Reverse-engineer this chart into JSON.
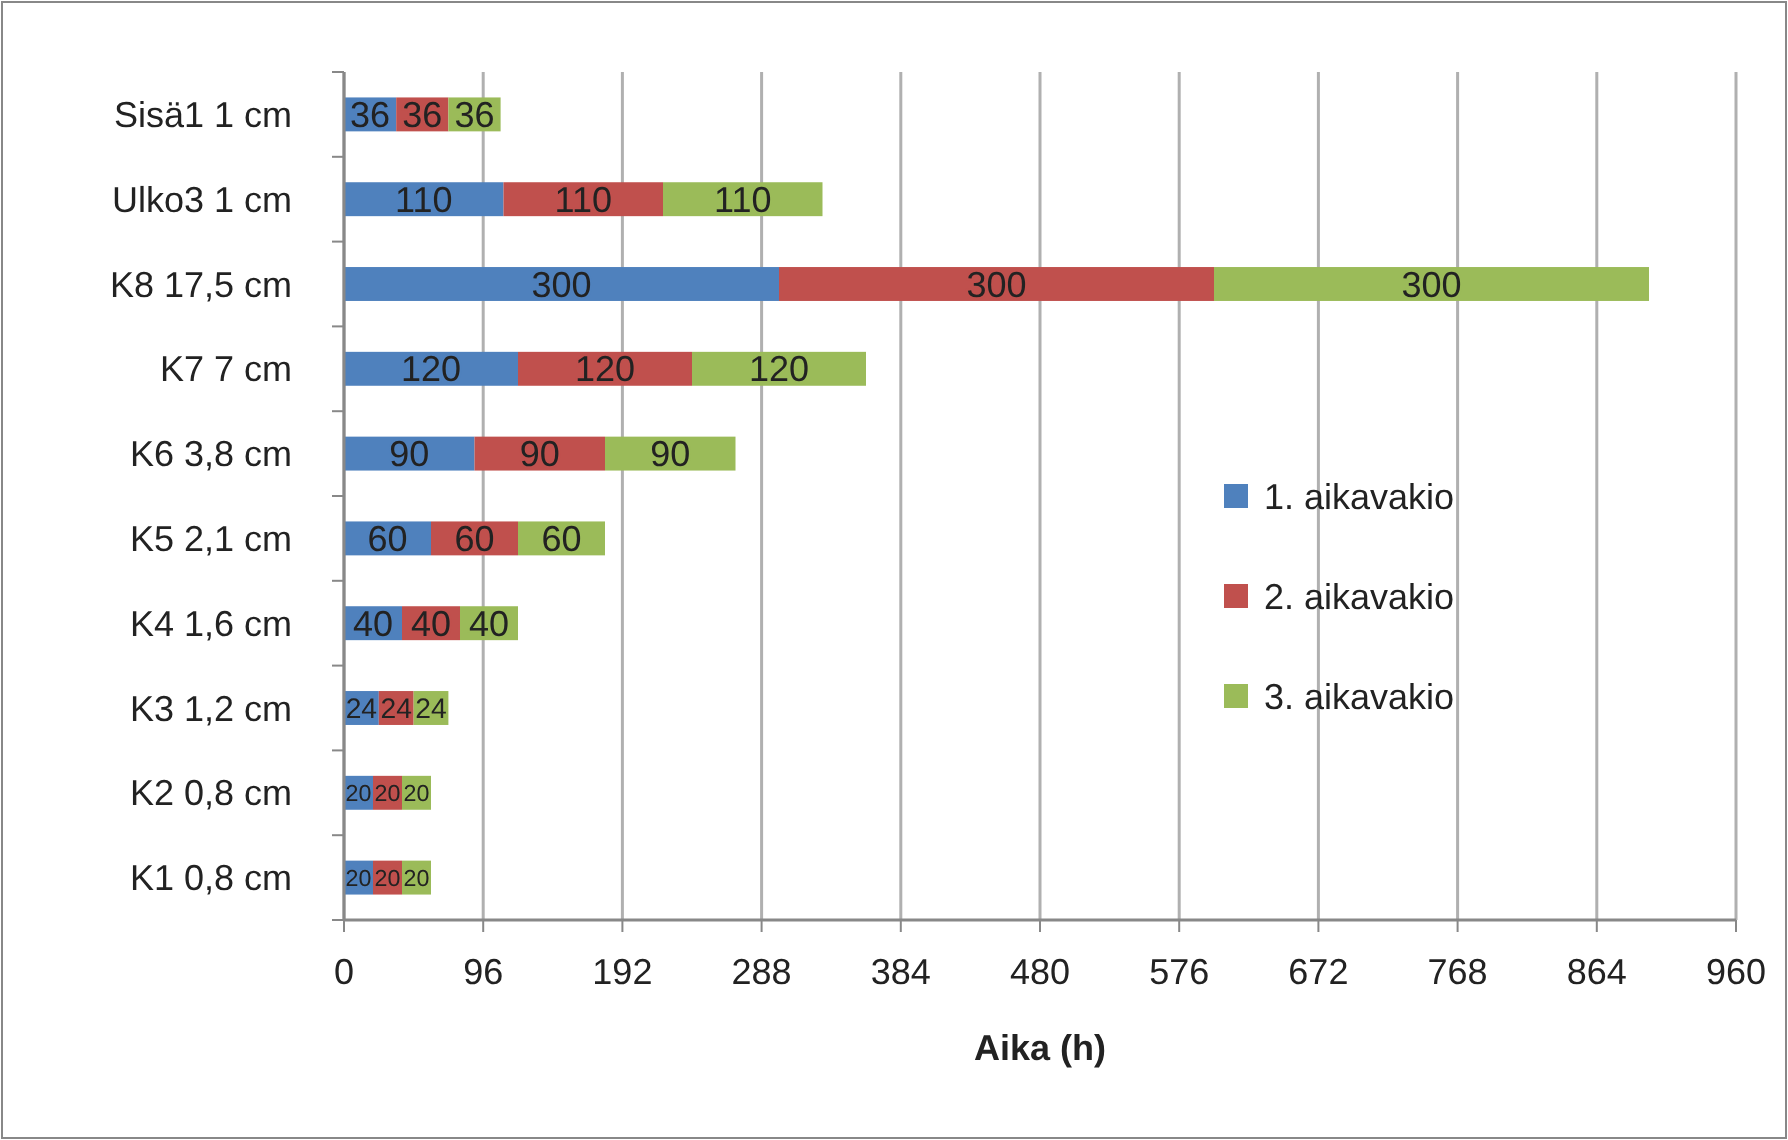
{
  "chart_data": {
    "type": "bar",
    "orientation": "horizontal",
    "stacked": true,
    "xlabel": "Aika (h)",
    "categories": [
      "Sisä1 1 cm",
      "Ulko3 1 cm",
      "K8 17,5 cm",
      "K7 7 cm",
      "K6 3,8 cm",
      "K5 2,1 cm",
      "K4 1,6 cm",
      "K3 1,2 cm",
      "K2 0,8 cm",
      "K1 0,8 cm"
    ],
    "series": [
      {
        "name": "1. aikavakio",
        "color": "#4f81bd",
        "values": [
          36,
          110,
          300,
          120,
          90,
          60,
          40,
          24,
          20,
          20
        ]
      },
      {
        "name": "2. aikavakio",
        "color": "#c0504d",
        "values": [
          36,
          110,
          300,
          120,
          90,
          60,
          40,
          24,
          20,
          20
        ]
      },
      {
        "name": "3. aikavakio",
        "color": "#9bbb59",
        "values": [
          36,
          110,
          300,
          120,
          90,
          60,
          40,
          24,
          20,
          20
        ]
      }
    ],
    "xlim": [
      0,
      960
    ],
    "xticks": [
      0,
      96,
      192,
      288,
      384,
      480,
      576,
      672,
      768,
      864,
      960
    ],
    "grid": "x",
    "legend": "right",
    "data_labels": true
  }
}
